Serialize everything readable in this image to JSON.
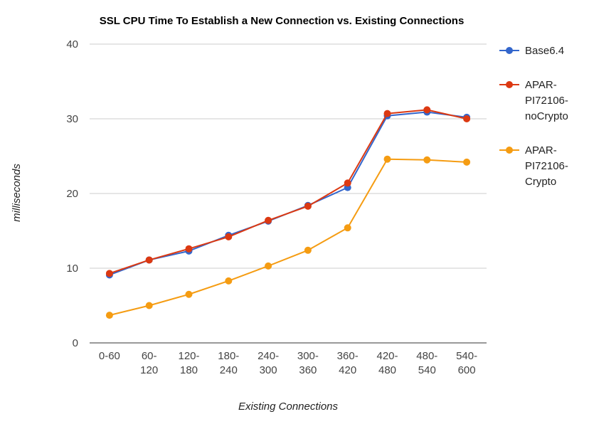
{
  "chart_data": {
    "type": "line",
    "title": "SSL CPU Time To Establish a New Connection vs. Existing Connections",
    "xlabel": "Existing Connections",
    "ylabel": "milliseconds",
    "categories": [
      "0-60",
      "60-120",
      "120-180",
      "180-240",
      "240-300",
      "300-360",
      "360-420",
      "420-480",
      "480-540",
      "540-600"
    ],
    "category_lines": [
      [
        "0-60"
      ],
      [
        "60-",
        "120"
      ],
      [
        "120-",
        "180"
      ],
      [
        "180-",
        "240"
      ],
      [
        "240-",
        "300"
      ],
      [
        "300-",
        "360"
      ],
      [
        "360-",
        "420"
      ],
      [
        "420-",
        "480"
      ],
      [
        "480-",
        "540"
      ],
      [
        "540-",
        "600"
      ]
    ],
    "ylim": [
      0,
      40
    ],
    "yticks": [
      "0",
      "10",
      "20",
      "30",
      "40"
    ],
    "grid": true,
    "legend_position": "right",
    "series": [
      {
        "name": "Base6.4",
        "name_lines": [
          "Base6.4"
        ],
        "color": "#3366cc",
        "values": [
          9.1,
          11.1,
          12.3,
          14.4,
          16.3,
          18.4,
          20.8,
          30.4,
          30.9,
          30.2
        ]
      },
      {
        "name": "APAR-PI72106-noCrypto",
        "name_lines": [
          "APAR-",
          "PI72106-",
          "noCrypto"
        ],
        "color": "#dc3912",
        "values": [
          9.3,
          11.1,
          12.6,
          14.2,
          16.4,
          18.3,
          21.4,
          30.7,
          31.2,
          30.0
        ]
      },
      {
        "name": "APAR-PI72106-Crypto",
        "name_lines": [
          "APAR-",
          "PI72106-",
          "Crypto"
        ],
        "color": "#f59c12",
        "values": [
          3.7,
          5.0,
          6.5,
          8.3,
          10.3,
          12.4,
          15.4,
          24.6,
          24.5,
          24.2
        ]
      }
    ]
  }
}
